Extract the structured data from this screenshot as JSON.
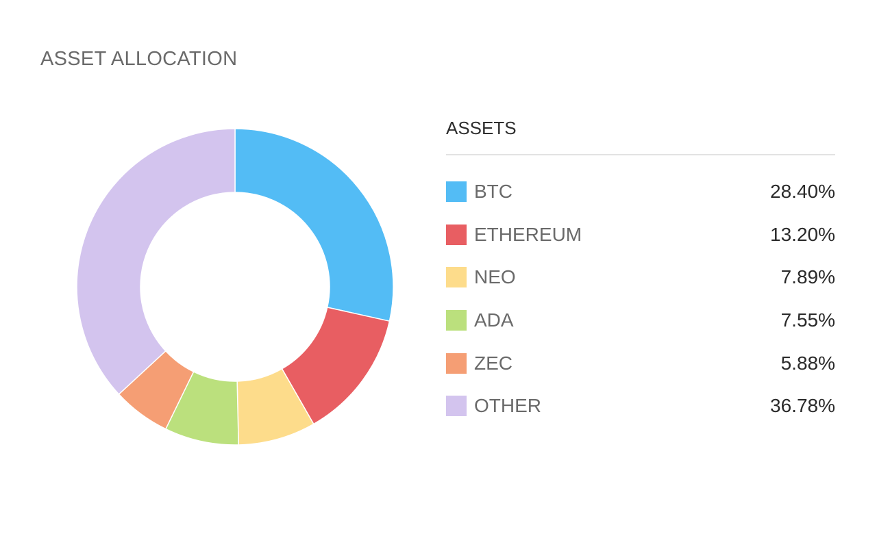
{
  "title": "ASSET ALLOCATION",
  "legend": {
    "header": "ASSETS"
  },
  "chart_data": {
    "type": "pie",
    "variant": "donut",
    "title": "ASSET ALLOCATION",
    "legend_title": "ASSETS",
    "legend_placement": "right",
    "categories": [
      "BTC",
      "ETHEREUM",
      "NEO",
      "ADA",
      "ZEC",
      "OTHER"
    ],
    "values": [
      28.4,
      13.2,
      7.89,
      7.55,
      5.88,
      36.78
    ],
    "value_labels": [
      "28.40%",
      "13.20%",
      "7.89%",
      "7.55%",
      "5.88%",
      "36.78%"
    ],
    "colors": [
      "#53bcf5",
      "#e85e62",
      "#fddc8b",
      "#bbe07d",
      "#f59e74",
      "#d3c4ee"
    ],
    "unit": "%"
  }
}
